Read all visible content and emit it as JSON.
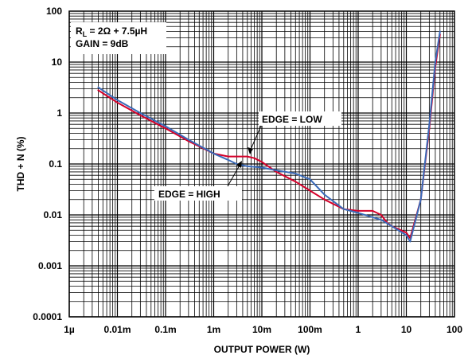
{
  "chart_data": {
    "type": "line",
    "title": "",
    "xlabel": "OUTPUT POWER (W)",
    "ylabel": "THD + N (%)",
    "xscale": "log",
    "yscale": "log",
    "xlim": [
      1e-06,
      100
    ],
    "ylim": [
      0.0001,
      100
    ],
    "grid": true,
    "x_tick_labels": [
      "1µ",
      "0.01m",
      "0.1m",
      "1m",
      "10m",
      "100m",
      "1",
      "10",
      "100"
    ],
    "y_tick_labels": [
      "100",
      "10",
      "1",
      "0.1",
      "0.01",
      "0.001",
      "0.0001"
    ],
    "conditions": {
      "line1_main": "R",
      "line1_sub": "L",
      "line1_rest": " = 2Ω + 7.5µH",
      "line2": "GAIN = 9dB"
    },
    "annotations": {
      "edge_low": "EDGE = LOW",
      "edge_high": "EDGE = HIGH"
    },
    "series": [
      {
        "name": "EDGE = LOW",
        "color": "#d4002a",
        "x": [
          4e-06,
          1e-05,
          3e-05,
          0.0001,
          0.0003,
          0.001,
          0.002,
          0.003,
          0.005,
          0.007,
          0.01,
          0.02,
          0.05,
          0.1,
          0.2,
          0.5,
          1,
          2,
          3,
          4,
          5,
          10,
          12,
          20,
          30,
          40,
          50
        ],
        "y": [
          2.8,
          1.6,
          0.9,
          0.5,
          0.28,
          0.16,
          0.14,
          0.14,
          0.14,
          0.13,
          0.11,
          0.07,
          0.045,
          0.03,
          0.02,
          0.013,
          0.012,
          0.012,
          0.01,
          0.007,
          0.006,
          0.0045,
          0.0035,
          0.02,
          0.5,
          8,
          35
        ]
      },
      {
        "name": "EDGE = HIGH",
        "color": "#3a6ab8",
        "x": [
          4e-06,
          1e-05,
          3e-05,
          0.0001,
          0.0003,
          0.001,
          0.002,
          0.003,
          0.005,
          0.007,
          0.01,
          0.02,
          0.05,
          0.1,
          0.2,
          0.5,
          1,
          2,
          3,
          5,
          10,
          12,
          20,
          30,
          40,
          50
        ],
        "y": [
          3.2,
          1.8,
          1.0,
          0.55,
          0.3,
          0.16,
          0.12,
          0.1,
          0.09,
          0.088,
          0.085,
          0.075,
          0.065,
          0.05,
          0.025,
          0.013,
          0.011,
          0.009,
          0.008,
          0.006,
          0.004,
          0.003,
          0.02,
          0.6,
          10,
          40
        ]
      }
    ]
  }
}
